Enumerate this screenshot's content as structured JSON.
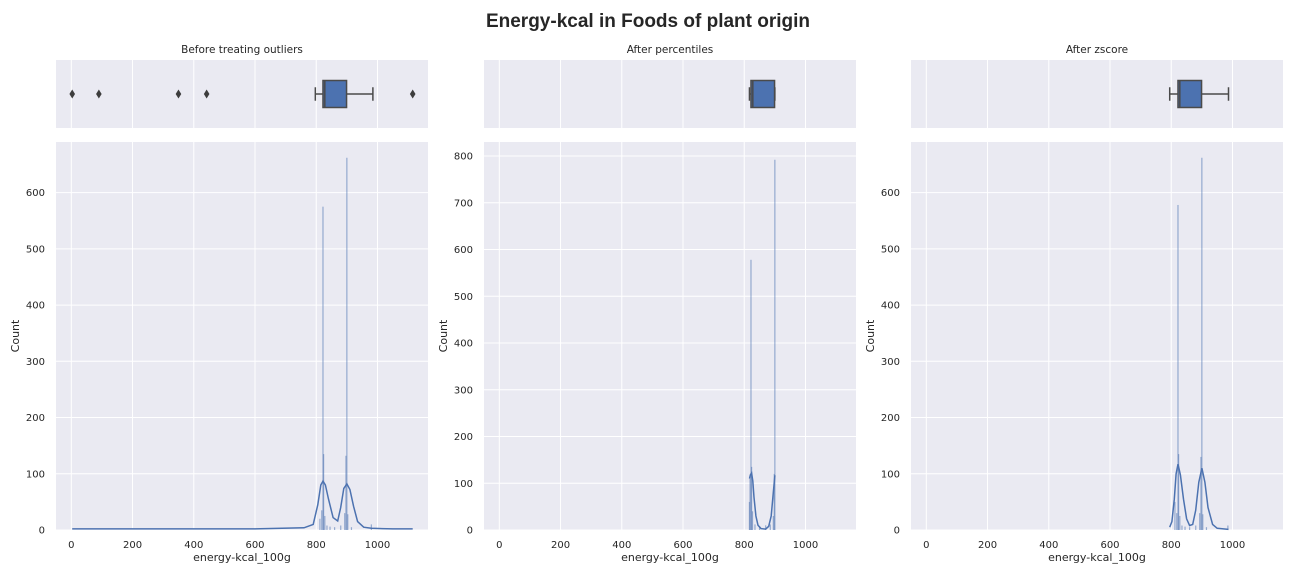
{
  "chart_data": {
    "title": "Energy-kcal in Foods of plant origin",
    "type": "histogram",
    "colors": {
      "background": "#eaeaf2",
      "grid": "#ffffff",
      "bar": "#4c72b0",
      "box": "#4c72b0",
      "text": "#262626"
    },
    "panels": [
      {
        "box_title": "Before treating outliers",
        "xlabel": "energy-kcal_100g",
        "ylabel": "Count",
        "xlim": [
          -50,
          1165
        ],
        "ylim": [
          0,
          690
        ],
        "xticks": [
          0,
          200,
          400,
          600,
          800,
          1000
        ],
        "yticks": [
          0,
          100,
          200,
          300,
          400,
          500,
          600
        ],
        "boxplot": {
          "whisker_low": 797,
          "q1": 822,
          "median": 828,
          "q3": 899,
          "whisker_high": 985,
          "outliers": [
            3,
            90,
            350,
            442,
            1115
          ]
        },
        "bars": [
          {
            "x": 812,
            "count": 20
          },
          {
            "x": 818,
            "count": 35
          },
          {
            "x": 822,
            "count": 575
          },
          {
            "x": 824,
            "count": 135
          },
          {
            "x": 828,
            "count": 25
          },
          {
            "x": 835,
            "count": 8
          },
          {
            "x": 845,
            "count": 6
          },
          {
            "x": 860,
            "count": 5
          },
          {
            "x": 880,
            "count": 8
          },
          {
            "x": 893,
            "count": 30
          },
          {
            "x": 897,
            "count": 132
          },
          {
            "x": 900,
            "count": 662
          },
          {
            "x": 903,
            "count": 28
          },
          {
            "x": 915,
            "count": 5
          },
          {
            "x": 980,
            "count": 10
          }
        ],
        "kde": [
          [
            3,
            2
          ],
          [
            200,
            2
          ],
          [
            400,
            2
          ],
          [
            600,
            2
          ],
          [
            760,
            4
          ],
          [
            790,
            10
          ],
          [
            805,
            45
          ],
          [
            815,
            80
          ],
          [
            822,
            87
          ],
          [
            830,
            80
          ],
          [
            840,
            55
          ],
          [
            855,
            22
          ],
          [
            870,
            16
          ],
          [
            880,
            40
          ],
          [
            890,
            74
          ],
          [
            900,
            82
          ],
          [
            910,
            72
          ],
          [
            922,
            42
          ],
          [
            935,
            15
          ],
          [
            955,
            5
          ],
          [
            980,
            3
          ],
          [
            1050,
            2
          ],
          [
            1115,
            2
          ]
        ]
      },
      {
        "box_title": "After percentiles",
        "xlabel": "energy-kcal_100g",
        "ylabel": "Count",
        "xlim": [
          -50,
          1165
        ],
        "ylim": [
          0,
          830
        ],
        "xticks": [
          0,
          200,
          400,
          600,
          800,
          1000
        ],
        "yticks": [
          0,
          100,
          200,
          300,
          400,
          500,
          600,
          700,
          800
        ],
        "boxplot": {
          "whisker_low": 817,
          "q1": 822,
          "median": 828,
          "q3": 899,
          "whisker_high": 900,
          "outliers": []
        },
        "bars": [
          {
            "x": 817,
            "count": 60
          },
          {
            "x": 819,
            "count": 110
          },
          {
            "x": 822,
            "count": 578
          },
          {
            "x": 824,
            "count": 135
          },
          {
            "x": 827,
            "count": 40
          },
          {
            "x": 835,
            "count": 12
          },
          {
            "x": 850,
            "count": 8
          },
          {
            "x": 870,
            "count": 10
          },
          {
            "x": 885,
            "count": 12
          },
          {
            "x": 895,
            "count": 30
          },
          {
            "x": 898,
            "count": 120
          },
          {
            "x": 900,
            "count": 792
          }
        ],
        "kde": [
          [
            817,
            110
          ],
          [
            820,
            118
          ],
          [
            824,
            122
          ],
          [
            828,
            105
          ],
          [
            832,
            70
          ],
          [
            838,
            30
          ],
          [
            845,
            10
          ],
          [
            855,
            3
          ],
          [
            870,
            2
          ],
          [
            880,
            8
          ],
          [
            888,
            30
          ],
          [
            895,
            80
          ],
          [
            900,
            117
          ]
        ]
      },
      {
        "box_title": "After zscore",
        "xlabel": "energy-kcal_100g",
        "ylabel": "Count",
        "xlim": [
          -50,
          1165
        ],
        "ylim": [
          0,
          690
        ],
        "xticks": [
          0,
          200,
          400,
          600,
          800,
          1000
        ],
        "yticks": [
          0,
          100,
          200,
          300,
          400,
          500,
          600
        ],
        "boxplot": {
          "whisker_low": 795,
          "q1": 822,
          "median": 828,
          "q3": 899,
          "whisker_high": 987,
          "outliers": []
        },
        "bars": [
          {
            "x": 812,
            "count": 50
          },
          {
            "x": 818,
            "count": 30
          },
          {
            "x": 822,
            "count": 578
          },
          {
            "x": 824,
            "count": 135
          },
          {
            "x": 828,
            "count": 25
          },
          {
            "x": 835,
            "count": 8
          },
          {
            "x": 845,
            "count": 6
          },
          {
            "x": 860,
            "count": 5
          },
          {
            "x": 880,
            "count": 8
          },
          {
            "x": 893,
            "count": 30
          },
          {
            "x": 897,
            "count": 130
          },
          {
            "x": 900,
            "count": 662
          },
          {
            "x": 903,
            "count": 28
          },
          {
            "x": 915,
            "count": 5
          },
          {
            "x": 985,
            "count": 8
          }
        ],
        "kde": [
          [
            795,
            5
          ],
          [
            802,
            15
          ],
          [
            810,
            55
          ],
          [
            816,
            100
          ],
          [
            822,
            117
          ],
          [
            830,
            98
          ],
          [
            840,
            55
          ],
          [
            850,
            20
          ],
          [
            860,
            8
          ],
          [
            870,
            10
          ],
          [
            880,
            35
          ],
          [
            890,
            85
          ],
          [
            900,
            110
          ],
          [
            910,
            85
          ],
          [
            920,
            40
          ],
          [
            935,
            10
          ],
          [
            950,
            3
          ],
          [
            970,
            2
          ],
          [
            987,
            1
          ]
        ]
      }
    ]
  }
}
